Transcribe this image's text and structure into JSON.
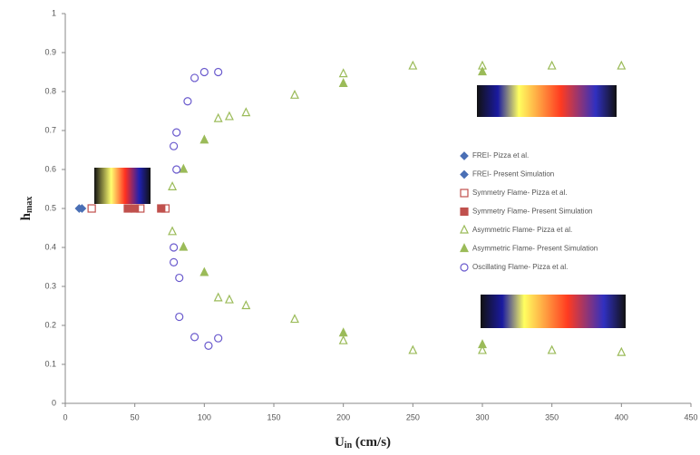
{
  "chart_data": {
    "type": "scatter",
    "x_label": [
      "U",
      "in",
      " (cm/s)"
    ],
    "y_label": [
      "h",
      "max"
    ],
    "xlim": [
      0,
      450
    ],
    "ylim": [
      0,
      1
    ],
    "xticks": [
      0,
      50,
      100,
      150,
      200,
      250,
      300,
      350,
      400,
      450
    ],
    "yticks": [
      0,
      0.1,
      0.2,
      0.3,
      0.4,
      0.5,
      0.6,
      0.7,
      0.8,
      0.9,
      1
    ],
    "grid": false,
    "series": [
      {
        "name": "FREI- Pizza et al.",
        "color": "#4a6fb5",
        "marker": "diamond",
        "filled": true,
        "x": [
          10
        ],
        "values": [
          0.5
        ]
      },
      {
        "name": "FREI- Present Simulation",
        "color": "#4a6fb5",
        "marker": "diamond",
        "filled": true,
        "x": [
          12
        ],
        "values": [
          0.5
        ]
      },
      {
        "name": "Symmetry Flame- Pizza et al.",
        "color": "#c0504d",
        "marker": "square",
        "filled": false,
        "x": [
          19,
          54,
          72
        ],
        "values": [
          0.5,
          0.5,
          0.5
        ]
      },
      {
        "name": "Symmetry Flame- Present Simulation",
        "color": "#c0504d",
        "marker": "square",
        "filled": true,
        "x": [
          45,
          50,
          69
        ],
        "values": [
          0.5,
          0.5,
          0.5
        ]
      },
      {
        "name": "Asymmetric Flame- Pizza et al.",
        "color": "#9bbb59",
        "marker": "triangle",
        "filled": false,
        "x": [
          77,
          110,
          118,
          130,
          165,
          200,
          250,
          300,
          350,
          400,
          77,
          110,
          118,
          130,
          165,
          200,
          250,
          300,
          350,
          400
        ],
        "values": [
          0.555,
          0.73,
          0.735,
          0.745,
          0.79,
          0.845,
          0.865,
          0.865,
          0.865,
          0.865,
          0.44,
          0.27,
          0.265,
          0.25,
          0.215,
          0.16,
          0.135,
          0.135,
          0.135,
          0.13
        ]
      },
      {
        "name": "Asymmetric Flame- Present Simulation",
        "color": "#9bbb59",
        "marker": "triangle",
        "filled": true,
        "x": [
          85,
          100,
          200,
          300,
          85,
          100,
          200,
          300
        ],
        "values": [
          0.6,
          0.675,
          0.82,
          0.85,
          0.4,
          0.335,
          0.18,
          0.15
        ]
      },
      {
        "name": "Oscillating Flame- Pizza et al.",
        "color": "#6a5acd",
        "marker": "circle",
        "filled": false,
        "x": [
          93,
          100,
          110,
          88,
          80,
          78,
          80,
          78,
          78,
          82,
          82,
          93,
          103,
          110
        ],
        "values": [
          0.835,
          0.85,
          0.85,
          0.775,
          0.695,
          0.66,
          0.6,
          0.4,
          0.362,
          0.322,
          0.222,
          0.17,
          0.148,
          0.167
        ]
      }
    ]
  }
}
